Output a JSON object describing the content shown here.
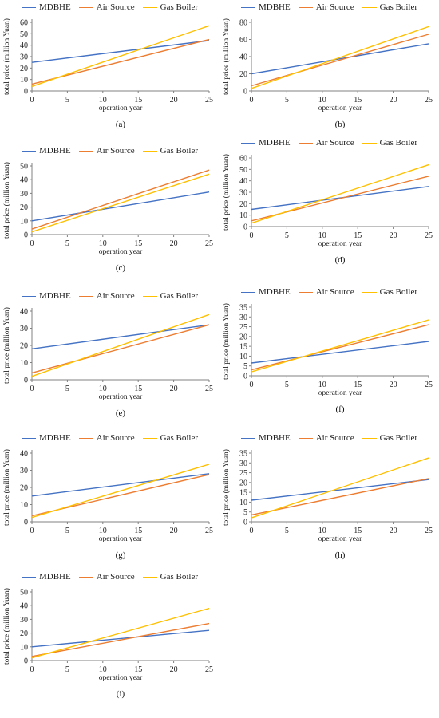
{
  "colors": {
    "MDBHE": "#4472C4",
    "Air Source": "#ED7D31",
    "Gas Boiler": "#FFC000"
  },
  "legend_labels": [
    "MDBHE",
    "Air Source",
    "Gas Boiler"
  ],
  "chart_data": [
    {
      "type": "line",
      "panel_label": "(a)",
      "xlabel": "operation year",
      "ylabel": "total price (million Yuan)",
      "xlim": [
        0,
        25
      ],
      "xticks": [
        0,
        5,
        10,
        15,
        20,
        25
      ],
      "ylim": [
        0,
        60
      ],
      "yticks": [
        0,
        10,
        20,
        30,
        40,
        50,
        60
      ],
      "legend_position": "top",
      "series": [
        {
          "name": "MDBHE",
          "x": [
            0,
            25
          ],
          "values": [
            25,
            44
          ]
        },
        {
          "name": "Air Source",
          "x": [
            0,
            25
          ],
          "values": [
            6,
            45
          ]
        },
        {
          "name": "Gas Boiler",
          "x": [
            0,
            25
          ],
          "values": [
            4,
            57
          ]
        }
      ]
    },
    {
      "type": "line",
      "panel_label": "(b)",
      "xlabel": "operation year",
      "ylabel": "total price (million Yuan)",
      "xlim": [
        0,
        25
      ],
      "xticks": [
        0,
        5,
        10,
        15,
        20,
        25
      ],
      "ylim": [
        0,
        80
      ],
      "yticks": [
        0,
        20,
        40,
        60,
        80
      ],
      "legend_position": "top",
      "series": [
        {
          "name": "MDBHE",
          "x": [
            0,
            25
          ],
          "values": [
            20,
            55
          ]
        },
        {
          "name": "Air Source",
          "x": [
            0,
            25
          ],
          "values": [
            6,
            66
          ]
        },
        {
          "name": "Gas Boiler",
          "x": [
            0,
            25
          ],
          "values": [
            3,
            75
          ]
        }
      ]
    },
    {
      "type": "line",
      "panel_label": "(c)",
      "xlabel": "operation year",
      "ylabel": "total price (million Yuan)",
      "xlim": [
        0,
        25
      ],
      "xticks": [
        0,
        5,
        10,
        15,
        20,
        25
      ],
      "ylim": [
        0,
        50
      ],
      "yticks": [
        0,
        10,
        20,
        30,
        40,
        50
      ],
      "legend_position": "top",
      "series": [
        {
          "name": "MDBHE",
          "x": [
            0,
            25
          ],
          "values": [
            10,
            31
          ]
        },
        {
          "name": "Air Source",
          "x": [
            0,
            25
          ],
          "values": [
            4,
            47
          ]
        },
        {
          "name": "Gas Boiler",
          "x": [
            0,
            25
          ],
          "values": [
            2,
            44
          ]
        }
      ]
    },
    {
      "type": "line",
      "panel_label": "(d)",
      "xlabel": "operation year",
      "ylabel": "total price (million Yuan)",
      "xlim": [
        0,
        25
      ],
      "xticks": [
        0,
        5,
        10,
        15,
        20,
        25
      ],
      "ylim": [
        0,
        60
      ],
      "yticks": [
        0,
        10,
        20,
        30,
        40,
        50,
        60
      ],
      "legend_position": "top",
      "series": [
        {
          "name": "MDBHE",
          "x": [
            0,
            25
          ],
          "values": [
            15,
            35
          ]
        },
        {
          "name": "Air Source",
          "x": [
            0,
            25
          ],
          "values": [
            5,
            44
          ]
        },
        {
          "name": "Gas Boiler",
          "x": [
            0,
            25
          ],
          "values": [
            3,
            54
          ]
        }
      ]
    },
    {
      "type": "line",
      "panel_label": "(e)",
      "xlabel": "operation year",
      "ylabel": "total price (million Yuan)",
      "xlim": [
        0,
        25
      ],
      "xticks": [
        0,
        5,
        10,
        15,
        20,
        25
      ],
      "ylim": [
        0,
        40
      ],
      "yticks": [
        0,
        10,
        20,
        30,
        40
      ],
      "legend_position": "top",
      "series": [
        {
          "name": "MDBHE",
          "x": [
            0,
            25
          ],
          "values": [
            18,
            32
          ]
        },
        {
          "name": "Air Source",
          "x": [
            0,
            25
          ],
          "values": [
            4,
            32
          ]
        },
        {
          "name": "Gas Boiler",
          "x": [
            0,
            25
          ],
          "values": [
            2,
            38
          ]
        }
      ]
    },
    {
      "type": "line",
      "panel_label": "(f)",
      "xlabel": "operation year",
      "ylabel": "total price (million Yuan)",
      "xlim": [
        0,
        25
      ],
      "xticks": [
        0,
        5,
        10,
        15,
        20,
        25
      ],
      "ylim": [
        0,
        35
      ],
      "yticks": [
        0,
        5,
        10,
        15,
        20,
        25,
        30,
        35
      ],
      "legend_position": "top",
      "series": [
        {
          "name": "MDBHE",
          "x": [
            0,
            25
          ],
          "values": [
            6.5,
            17.5
          ]
        },
        {
          "name": "Air Source",
          "x": [
            0,
            25
          ],
          "values": [
            3,
            26
          ]
        },
        {
          "name": "Gas Boiler",
          "x": [
            0,
            25
          ],
          "values": [
            2,
            28.5
          ]
        }
      ]
    },
    {
      "type": "line",
      "panel_label": "(g)",
      "xlabel": "operation year",
      "ylabel": "total price (million Yuan)",
      "xlim": [
        0,
        25
      ],
      "xticks": [
        0,
        5,
        10,
        15,
        20,
        25
      ],
      "ylim": [
        0,
        40
      ],
      "yticks": [
        0,
        10,
        20,
        30,
        40
      ],
      "legend_position": "top",
      "series": [
        {
          "name": "MDBHE",
          "x": [
            0,
            25
          ],
          "values": [
            15,
            28
          ]
        },
        {
          "name": "Air Source",
          "x": [
            0,
            25
          ],
          "values": [
            3.5,
            27.5
          ]
        },
        {
          "name": "Gas Boiler",
          "x": [
            0,
            25
          ],
          "values": [
            2.5,
            33.5
          ]
        }
      ]
    },
    {
      "type": "line",
      "panel_label": "(h)",
      "xlabel": "operation year",
      "ylabel": "total price (million Yuan)",
      "xlim": [
        0,
        25
      ],
      "xticks": [
        0,
        5,
        10,
        15,
        20,
        25
      ],
      "ylim": [
        0,
        35
      ],
      "yticks": [
        0,
        5,
        10,
        15,
        20,
        25,
        30,
        35
      ],
      "legend_position": "top",
      "series": [
        {
          "name": "MDBHE",
          "x": [
            0,
            25
          ],
          "values": [
            11,
            21.5
          ]
        },
        {
          "name": "Air Source",
          "x": [
            0,
            25
          ],
          "values": [
            3.5,
            22
          ]
        },
        {
          "name": "Gas Boiler",
          "x": [
            0,
            25
          ],
          "values": [
            2,
            32.5
          ]
        }
      ]
    },
    {
      "type": "line",
      "panel_label": "(i)",
      "xlabel": "operation year",
      "ylabel": "total price (million Yuan)",
      "xlim": [
        0,
        25
      ],
      "xticks": [
        0,
        5,
        10,
        15,
        20,
        25
      ],
      "ylim": [
        0,
        50
      ],
      "yticks": [
        0,
        10,
        20,
        30,
        40,
        50
      ],
      "legend_position": "top",
      "series": [
        {
          "name": "MDBHE",
          "x": [
            0,
            25
          ],
          "values": [
            10,
            22
          ]
        },
        {
          "name": "Air Source",
          "x": [
            0,
            25
          ],
          "values": [
            3,
            27
          ]
        },
        {
          "name": "Gas Boiler",
          "x": [
            0,
            25
          ],
          "values": [
            2,
            38
          ]
        }
      ]
    }
  ]
}
